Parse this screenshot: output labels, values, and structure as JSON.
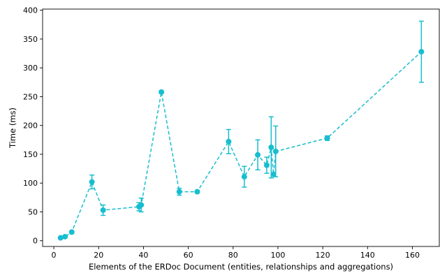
{
  "chart_data": {
    "type": "line",
    "title": "",
    "xlabel": "Elements of the ERDoc Document (entities, relationships and aggregations)",
    "ylabel": "Time (ms)",
    "xlim": [
      -5,
      172
    ],
    "ylim": [
      -10,
      402
    ],
    "xticks": [
      0,
      20,
      40,
      60,
      80,
      100,
      120,
      140,
      160
    ],
    "yticks": [
      0,
      50,
      100,
      150,
      200,
      250,
      300,
      350,
      400
    ],
    "grid": false,
    "legend": "none",
    "series": [
      {
        "color": "#17becf",
        "line_style": "dashed",
        "marker": "circle",
        "points": [
          {
            "x": 3,
            "y": 5,
            "err": 1
          },
          {
            "x": 5,
            "y": 7,
            "err": 1
          },
          {
            "x": 8,
            "y": 15,
            "err": 2
          },
          {
            "x": 17,
            "y": 102,
            "err": 12
          },
          {
            "x": 22,
            "y": 53,
            "err": 9
          },
          {
            "x": 38,
            "y": 59,
            "err": 7
          },
          {
            "x": 39,
            "y": 62,
            "err": 12
          },
          {
            "x": 48,
            "y": 258,
            "err": 2
          },
          {
            "x": 56,
            "y": 85,
            "err": 6
          },
          {
            "x": 64,
            "y": 85,
            "err": 2
          },
          {
            "x": 78,
            "y": 172,
            "err": 21
          },
          {
            "x": 85,
            "y": 111,
            "err": 18
          },
          {
            "x": 91,
            "y": 149,
            "err": 26
          },
          {
            "x": 95,
            "y": 131,
            "err": 14
          },
          {
            "x": 97,
            "y": 162,
            "err": 53
          },
          {
            "x": 98,
            "y": 115,
            "err": 3
          },
          {
            "x": 99,
            "y": 155,
            "err": 44
          },
          {
            "x": 122,
            "y": 178,
            "err": 4
          },
          {
            "x": 164,
            "y": 328,
            "err": 53
          }
        ]
      }
    ]
  }
}
